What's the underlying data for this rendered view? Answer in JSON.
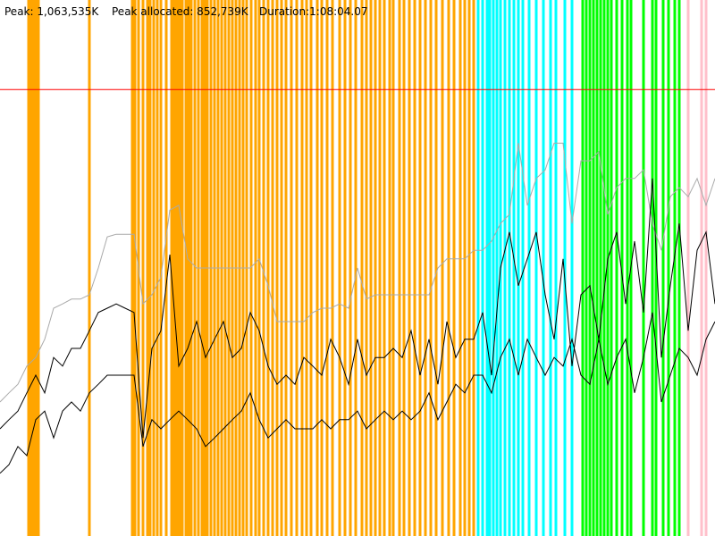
{
  "chart_data": {
    "type": "line",
    "texts": [
      "Peak: 1,063,535K",
      "Peak allocated: 852,739K",
      "Duration:1:08:04.07"
    ],
    "xlim": [
      0,
      80
    ],
    "ylim": [
      0,
      100
    ],
    "x": [
      0,
      1,
      2,
      3,
      4,
      5,
      6,
      7,
      8,
      9,
      10,
      11,
      12,
      13,
      14,
      15,
      16,
      17,
      18,
      19,
      20,
      21,
      22,
      23,
      24,
      25,
      26,
      27,
      28,
      29,
      30,
      31,
      32,
      33,
      34,
      35,
      36,
      37,
      38,
      39,
      40,
      41,
      42,
      43,
      44,
      45,
      46,
      47,
      48,
      49,
      50,
      51,
      52,
      53,
      54,
      55,
      56,
      57,
      58,
      59,
      60,
      61,
      62,
      63,
      64,
      65,
      66,
      67,
      68,
      69,
      70,
      71,
      72,
      73,
      74,
      75,
      76,
      77,
      78,
      79,
      80
    ],
    "reference_line": {
      "value": 83.3,
      "color": "#ff0000"
    },
    "events": [
      {
        "color": "#ffa500",
        "x": [
          3.2,
          3.5,
          3.8,
          4.1,
          4.3,
          10.0,
          14.8,
          15.1,
          15.5,
          16.0,
          16.5,
          16.8,
          17.2,
          17.6,
          18.0,
          18.6,
          19.2,
          19.5,
          19.8,
          20.1,
          20.4,
          20.8,
          21.1,
          21.4,
          21.8,
          22.2,
          22.6,
          22.9,
          23.2,
          23.6,
          24.0,
          24.4,
          24.8,
          25.2,
          25.6,
          26.0,
          26.4,
          26.8,
          27.2,
          27.6,
          28.1,
          28.6,
          29.0,
          29.5,
          30.0,
          30.5,
          31.0,
          31.5,
          32.0,
          32.6,
          33.2,
          33.8,
          34.3,
          34.8,
          35.5,
          36.0,
          36.6,
          37.2,
          38.0,
          38.6,
          39.2,
          39.8,
          40.5,
          41.0,
          41.5,
          42.0,
          42.5,
          43.0,
          43.6,
          44.0,
          44.7,
          45.2,
          45.8,
          46.4,
          47.0,
          47.6,
          48.2,
          48.8,
          49.5,
          50.2,
          50.8,
          51.5,
          52.0,
          52.5,
          53.0
        ]
      },
      {
        "color": "#00ffff",
        "x": [
          53.5,
          54.0,
          54.5,
          54.8,
          55.2,
          55.6,
          56.0,
          56.5,
          57.0,
          57.5,
          58.0,
          58.5,
          59.2,
          60.0,
          60.8,
          61.6,
          62.2,
          63.2,
          64.0
        ]
      },
      {
        "color": "#00ff00",
        "x": [
          65.2,
          65.6,
          66.0,
          66.4,
          66.8,
          67.2,
          67.6,
          68.0,
          68.4,
          69.0,
          69.6,
          70.2,
          70.6,
          72.0,
          73.0,
          73.4,
          74.2,
          74.8,
          75.5,
          76.0
        ]
      },
      {
        "color": "#ffc0cb",
        "x": [
          77.0,
          78.5,
          79.0
        ]
      }
    ],
    "series": [
      {
        "color": "#aaaaaa",
        "values": [
          25,
          26.7,
          28.3,
          31.7,
          33.3,
          36.7,
          42.5,
          43.3,
          44.2,
          44.2,
          45,
          50,
          55.8,
          56.3,
          56.3,
          56.3,
          43.3,
          45,
          48.3,
          60.8,
          61.7,
          51.7,
          50,
          50,
          50,
          50,
          50,
          50,
          50,
          51.7,
          46.7,
          40,
          40,
          40,
          40,
          41.7,
          42.5,
          42.5,
          43.3,
          42.5,
          50,
          44.2,
          45,
          45,
          45,
          45,
          45,
          45,
          45,
          50,
          51.7,
          51.7,
          51.7,
          53.3,
          53.3,
          55,
          58.3,
          60,
          73.3,
          61.7,
          66.7,
          68.3,
          73.3,
          73.3,
          58.3,
          70,
          70,
          71.7,
          60,
          65,
          66.7,
          66.7,
          68.3,
          58.3,
          53.3,
          63.3,
          65,
          63.3,
          66.7,
          61.7,
          66.7
        ]
      },
      {
        "color": "#000000",
        "values": [
          20,
          21.7,
          23.3,
          26.7,
          30,
          26.7,
          33.3,
          31.7,
          35,
          35,
          38.3,
          41.7,
          42.5,
          43.3,
          42.5,
          41.7,
          18.3,
          35,
          38.3,
          52.5,
          31.7,
          35,
          40,
          33.3,
          36.7,
          40,
          33.3,
          35,
          41.7,
          38.3,
          31.7,
          28.3,
          30,
          28.3,
          33.3,
          31.7,
          30,
          36.7,
          33.3,
          28.3,
          36.7,
          30,
          33.3,
          33.3,
          35,
          33.3,
          38.3,
          30,
          36.7,
          28.3,
          40,
          33.3,
          36.7,
          36.7,
          41.7,
          30,
          50,
          56.7,
          46.7,
          51.7,
          56.7,
          45,
          36.7,
          51.7,
          31.7,
          45,
          46.7,
          36.7,
          51.7,
          56.7,
          43.3,
          55,
          41.7,
          66.7,
          33.3,
          46.7,
          58.3,
          38.3,
          53.3,
          56.7,
          43.3
        ]
      },
      {
        "color": "#000000",
        "values": [
          11.7,
          13.3,
          16.7,
          15,
          21.7,
          23.3,
          18.3,
          23.3,
          25,
          23.3,
          26.7,
          28.3,
          30,
          30,
          30,
          30,
          16.7,
          21.7,
          20,
          21.7,
          23.3,
          21.7,
          20,
          16.7,
          18.3,
          20,
          21.7,
          23.3,
          26.7,
          21.7,
          18.3,
          20,
          21.7,
          20,
          20,
          20,
          21.7,
          20,
          21.7,
          21.7,
          23.3,
          20,
          21.7,
          23.3,
          21.7,
          23.3,
          21.7,
          23.3,
          26.7,
          21.7,
          25,
          28.3,
          26.7,
          30,
          30,
          26.7,
          33.3,
          36.7,
          30,
          36.7,
          33.3,
          30,
          33.3,
          31.7,
          36.7,
          30,
          28.3,
          36.7,
          28.3,
          33.3,
          36.7,
          26.7,
          33.3,
          41.7,
          25,
          30,
          35,
          33.3,
          30,
          36.7,
          40
        ]
      }
    ]
  }
}
